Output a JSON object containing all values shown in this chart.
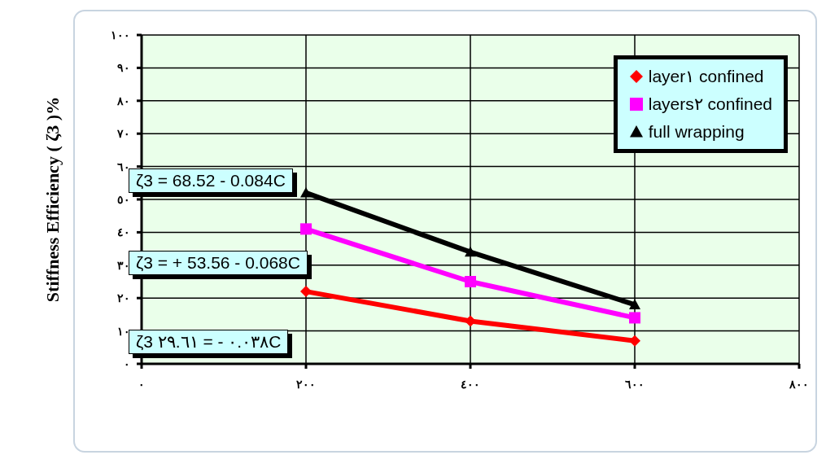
{
  "chart_data": {
    "type": "line",
    "ylabel": "Stiffness  Efficiency ( ζ3 )%",
    "x": [
      200,
      400,
      600
    ],
    "series": [
      {
        "name": "layer١ confined",
        "color": "#ff0000",
        "marker": "diamond",
        "values": [
          22,
          13,
          7
        ]
      },
      {
        "name": "layers٢ confined",
        "color": "#ff00ff",
        "marker": "square",
        "values": [
          41,
          25,
          14
        ]
      },
      {
        "name": "full wrapping",
        "color": "#000000",
        "marker": "triangle",
        "values": [
          52,
          34,
          18
        ]
      }
    ],
    "xlim": [
      0,
      800
    ],
    "xticks": [
      {
        "value": 0,
        "label": "٠"
      },
      {
        "value": 200,
        "label": "٢٠٠"
      },
      {
        "value": 400,
        "label": "٤٠٠"
      },
      {
        "value": 600,
        "label": "٦٠٠"
      },
      {
        "value": 800,
        "label": "٨٠٠"
      }
    ],
    "ylim": [
      0,
      100
    ],
    "yticks": [
      {
        "value": 0,
        "label": "٠"
      },
      {
        "value": 10,
        "label": "١٠"
      },
      {
        "value": 20,
        "label": "٢٠"
      },
      {
        "value": 30,
        "label": "٣٠"
      },
      {
        "value": 40,
        "label": "٤٠"
      },
      {
        "value": 50,
        "label": "٥٠"
      },
      {
        "value": 60,
        "label": "٦٠"
      },
      {
        "value": 70,
        "label": "٧٠"
      },
      {
        "value": 80,
        "label": "٨٠"
      },
      {
        "value": 90,
        "label": "٩٠"
      },
      {
        "value": 100,
        "label": "١٠٠"
      }
    ],
    "grid": true,
    "legend": "top right",
    "annotations": [
      "ζ3 = 68.52 - 0.084C",
      "ζ3 = + 53.56 - 0.068C",
      "ζ3 ٢٩.٦١ = - ٠.٠٣٨C"
    ]
  }
}
